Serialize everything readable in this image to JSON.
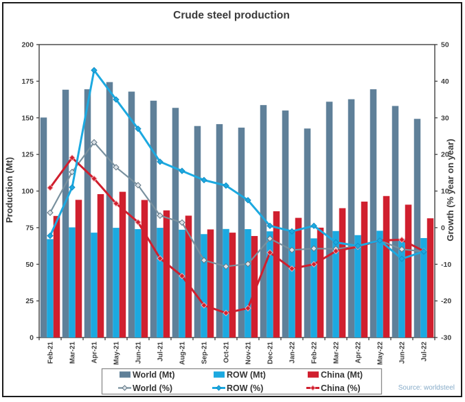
{
  "figure": {
    "title": "Crude steel production",
    "source": "Source: worldsteel",
    "left_axis_title": "Production (Mt)",
    "right_axis_title": "Growth (% year on year)"
  },
  "colors": {
    "world_bar": "#5f8099",
    "row_bar": "#1ca9e0",
    "china_bar": "#d01f2e",
    "world_line": "#78909e",
    "row_line": "#1ca9e0",
    "china_line": "#d01f2e",
    "axis": "#3f3f3f",
    "frame": "#1b1b1b",
    "legend_border": "#8a8a8a",
    "source_text": "#86abc8"
  },
  "chart_data": {
    "type": "bar+line combo",
    "title": "Crude steel production",
    "categories": [
      "Feb-21",
      "Mar-21",
      "Apr-21",
      "May-21",
      "Jun-21",
      "Jul-21",
      "Aug-21",
      "Sep-21",
      "Oct-21",
      "Nov-21",
      "Dec-21",
      "Jan-22",
      "Feb-22",
      "Mar-22",
      "Apr-22",
      "May-22",
      "Jun-22",
      "Jul-22"
    ],
    "bar_series": [
      {
        "name": "World (Mt)",
        "color": "#5f8099",
        "values": [
          150.2,
          169.2,
          169.5,
          174.4,
          167.9,
          161.7,
          156.8,
          144.4,
          145.7,
          143.3,
          158.7,
          155.0,
          142.7,
          161.0,
          162.7,
          169.5,
          158.1,
          149.3
        ]
      },
      {
        "name": "ROW (Mt)",
        "color": "#1ca9e0",
        "values": [
          67.2,
          75.2,
          71.6,
          74.9,
          74.0,
          74.9,
          73.6,
          70.6,
          74.1,
          74.0,
          72.5,
          73.3,
          67.7,
          72.7,
          69.9,
          72.9,
          67.4,
          67.9
        ]
      },
      {
        "name": "China (Mt)",
        "color": "#d01f2e",
        "values": [
          83.0,
          94.0,
          97.9,
          99.5,
          93.9,
          86.8,
          83.2,
          73.8,
          71.6,
          69.3,
          86.2,
          81.7,
          75.0,
          88.3,
          92.8,
          96.6,
          90.7,
          81.4
        ]
      }
    ],
    "line_series": [
      {
        "name": "World (%)",
        "color": "#78909e",
        "marker_fill": "#dce3e8",
        "marker_stroke": "#5f7482",
        "values": [
          4.1,
          15.2,
          23.3,
          16.5,
          11.6,
          3.3,
          1.4,
          -8.9,
          -10.6,
          -9.9,
          -3.0,
          -6.1,
          -5.7,
          -5.8,
          -5.1,
          -3.5,
          -5.9,
          -6.5
        ]
      },
      {
        "name": "ROW (%)",
        "color": "#1ca9e0",
        "marker_fill": "#1ca9e0",
        "marker_stroke": "#128ec5",
        "values": [
          -2.2,
          11.0,
          43.0,
          35.0,
          27.0,
          18.0,
          15.5,
          13.0,
          11.5,
          7.5,
          0.5,
          -1.0,
          0.5,
          -4.0,
          -5.0,
          -3.5,
          -8.5,
          -6.5
        ]
      },
      {
        "name": "China (%)",
        "color": "#d01f2e",
        "marker_fill": "#d01f2e",
        "marker_stroke": "#f2aab0",
        "values": [
          10.9,
          19.1,
          13.4,
          6.6,
          1.5,
          -8.4,
          -13.2,
          -21.2,
          -23.3,
          -22.0,
          -6.8,
          -11.2,
          -10.0,
          -6.4,
          -5.2,
          -3.5,
          -3.3,
          -6.4
        ]
      }
    ],
    "left_axis": {
      "label": "Production (Mt)",
      "min": 0,
      "max": 200,
      "step": 25
    },
    "right_axis": {
      "label": "Growth (% year on year)",
      "min": -30,
      "max": 50,
      "step": 10
    },
    "grid": false,
    "legend_position": "bottom",
    "x_tick_label_rotation": -90
  }
}
